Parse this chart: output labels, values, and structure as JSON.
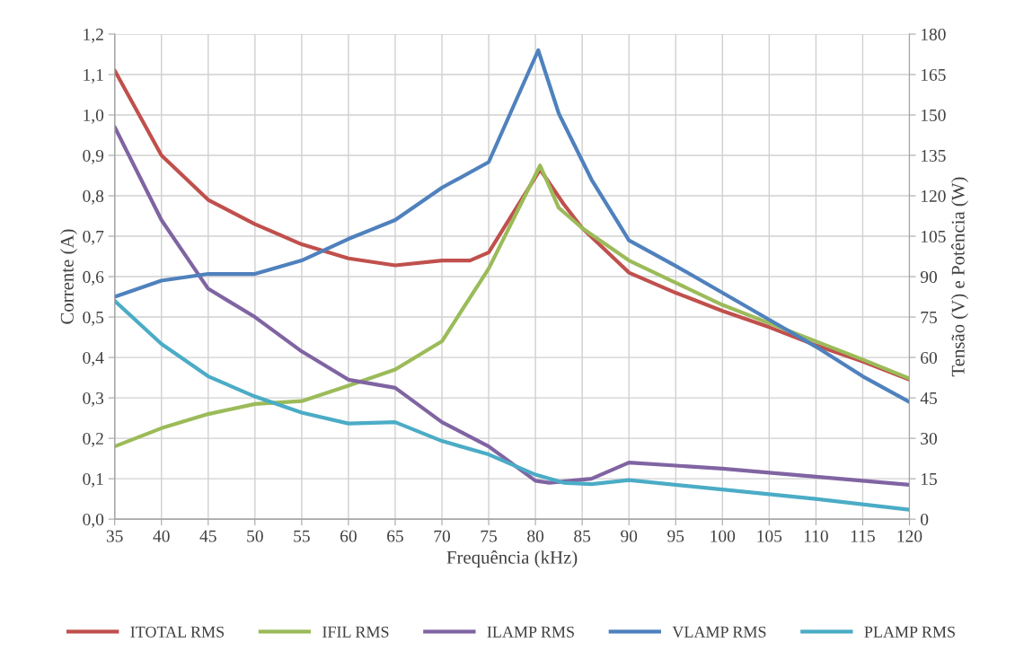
{
  "chart_data": {
    "type": "line",
    "xlabel": "Frequência (kHz)",
    "ylabel": "Corrente (A)",
    "y2label": "Tensão (V) e Potência (W)",
    "xlim": [
      35,
      120
    ],
    "xticks": [
      35,
      40,
      45,
      50,
      55,
      60,
      65,
      70,
      75,
      80,
      85,
      90,
      95,
      100,
      105,
      110,
      115,
      120
    ],
    "ylim": [
      0,
      1.2
    ],
    "yticks": [
      {
        "value": 0,
        "label": "0,0"
      },
      {
        "value": 0.1,
        "label": "0,1"
      },
      {
        "value": 0.2,
        "label": "0,2"
      },
      {
        "value": 0.3,
        "label": "0,3"
      },
      {
        "value": 0.4,
        "label": "0,4"
      },
      {
        "value": 0.5,
        "label": "0,5"
      },
      {
        "value": 0.6,
        "label": "0,6"
      },
      {
        "value": 0.7,
        "label": "0,7"
      },
      {
        "value": 0.8,
        "label": "0,8"
      },
      {
        "value": 0.9,
        "label": "0,9"
      },
      {
        "value": 1.0,
        "label": "1,0"
      },
      {
        "value": 1.1,
        "label": "1,1"
      },
      {
        "value": 1.2,
        "label": "1,2"
      }
    ],
    "y2lim": [
      0,
      180
    ],
    "y2ticks": [
      0,
      15,
      30,
      45,
      60,
      75,
      90,
      105,
      120,
      135,
      150,
      165,
      180
    ],
    "grid": true,
    "legend": "bottom",
    "marker": "none",
    "line_style": "solid",
    "series": [
      {
        "name": "ITOTAL RMS",
        "color": "#c0504d",
        "x": [
          35,
          40,
          45,
          50,
          55,
          60,
          65,
          70,
          73,
          75,
          80.5,
          83,
          85,
          90,
          95,
          100,
          105,
          110,
          115,
          120
        ],
        "values": [
          1.11,
          0.9,
          0.79,
          0.73,
          0.68,
          0.645,
          0.628,
          0.64,
          0.64,
          0.66,
          0.865,
          0.78,
          0.72,
          0.61,
          0.56,
          0.515,
          0.475,
          0.43,
          0.39,
          0.345
        ]
      },
      {
        "name": "IFIL RMS",
        "color": "#9bbb59",
        "x": [
          35,
          40,
          45,
          50,
          55,
          60,
          65,
          70,
          75,
          80.5,
          82.5,
          85,
          90,
          95,
          100,
          105,
          110,
          115,
          120
        ],
        "values": [
          0.18,
          0.225,
          0.26,
          0.285,
          0.292,
          0.33,
          0.37,
          0.44,
          0.62,
          0.875,
          0.77,
          0.72,
          0.64,
          0.585,
          0.53,
          0.485,
          0.44,
          0.395,
          0.348
        ]
      },
      {
        "name": "ILAMP RMS",
        "color": "#8064a2",
        "x": [
          35,
          40,
          45,
          50,
          55,
          60,
          65,
          70,
          75,
          80,
          81.5,
          86,
          90,
          100,
          110,
          120
        ],
        "values": [
          0.97,
          0.74,
          0.57,
          0.5,
          0.415,
          0.345,
          0.325,
          0.24,
          0.18,
          0.095,
          0.09,
          0.1,
          0.14,
          0.125,
          0.105,
          0.085
        ]
      },
      {
        "name": "VLAMP RMS",
        "color": "#4f81bd",
        "axis": "y2",
        "x": [
          35,
          40,
          45,
          50,
          55,
          60,
          65,
          70,
          75,
          80.3,
          82.5,
          86,
          90,
          95,
          100,
          105,
          110,
          115,
          120
        ],
        "values": [
          82.5,
          88.5,
          91,
          91,
          96,
          104,
          111,
          123,
          132.5,
          174,
          150.5,
          126,
          103.5,
          94,
          84,
          74,
          64,
          53,
          43.5
        ]
      },
      {
        "name": "PLAMP RMS",
        "color": "#4bacc6",
        "axis": "y2",
        "x": [
          35,
          40,
          45,
          50,
          55,
          60,
          65,
          70,
          75,
          80,
          83,
          86,
          90,
          100,
          110,
          120
        ],
        "values": [
          81,
          65,
          53,
          45.5,
          39.5,
          35.5,
          36,
          29,
          24,
          16.5,
          13.5,
          13,
          14.5,
          11,
          7.5,
          3.5
        ]
      }
    ]
  }
}
